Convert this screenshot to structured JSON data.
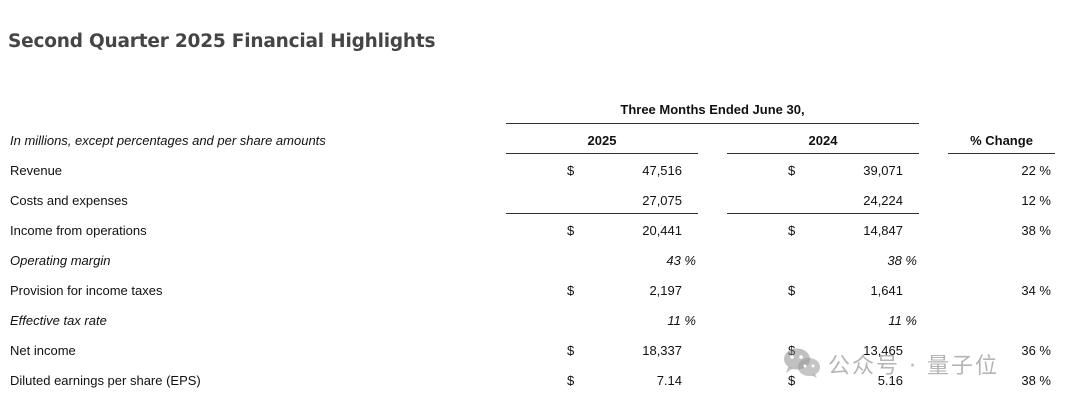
{
  "title": "Second Quarter 2025 Financial Highlights",
  "period_header": "Three Months Ended June 30,",
  "subtitle": "In millions, except percentages and per share amounts",
  "columns": {
    "y2025": "2025",
    "y2024": "2024",
    "change": "% Change"
  },
  "rows": [
    {
      "label": "Revenue",
      "italic": false,
      "dollar_2025": "$",
      "v2025": "47,516",
      "dollar_2024": "$",
      "v2024": "39,071",
      "change": "22 %"
    },
    {
      "label": "Costs and expenses",
      "italic": false,
      "dollar_2025": "",
      "v2025": "27,075",
      "dollar_2024": "",
      "v2024": "24,224",
      "change": "12 %"
    },
    {
      "label": "Income from operations",
      "italic": false,
      "dollar_2025": "$",
      "v2025": "20,441",
      "dollar_2024": "$",
      "v2024": "14,847",
      "change": "38 %"
    },
    {
      "label": "Operating margin",
      "italic": true,
      "dollar_2025": "",
      "v2025": "43 %",
      "dollar_2024": "",
      "v2024": "38 %",
      "change": ""
    },
    {
      "label": "Provision for income taxes",
      "italic": false,
      "dollar_2025": "$",
      "v2025": "2,197",
      "dollar_2024": "$",
      "v2024": "1,641",
      "change": "34 %"
    },
    {
      "label": "Effective tax rate",
      "italic": true,
      "dollar_2025": "",
      "v2025": "11 %",
      "dollar_2024": "",
      "v2024": "11 %",
      "change": ""
    },
    {
      "label": "Net income",
      "italic": false,
      "dollar_2025": "$",
      "v2025": "18,337",
      "dollar_2024": "$",
      "v2024": "13,465",
      "change": "36 %"
    },
    {
      "label": "Diluted earnings per share (EPS)",
      "italic": false,
      "dollar_2025": "$",
      "v2025": "7.14",
      "dollar_2024": "$",
      "v2024": "5.16",
      "change": "38 %"
    }
  ],
  "watermark": {
    "text": "公众号 · 量子位",
    "icon": "wechat-icon"
  }
}
